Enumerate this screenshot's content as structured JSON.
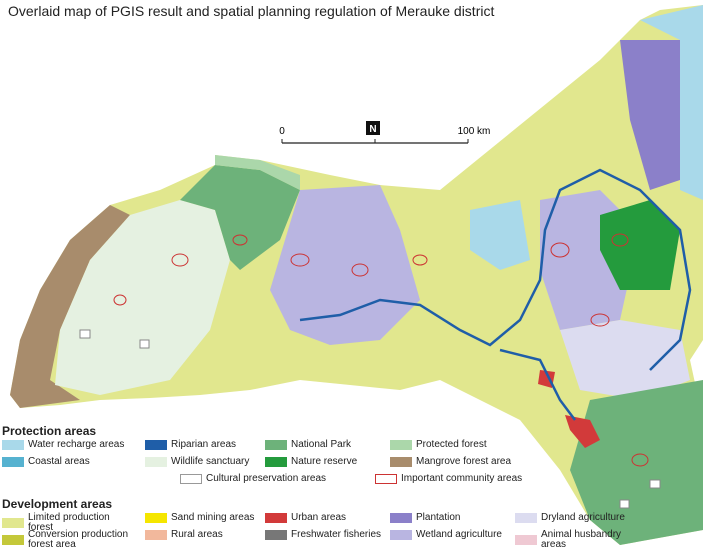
{
  "title": "Overlaid map of PGIS result and spatial planning regulation of Merauke district",
  "scale_bar": {
    "start": "0",
    "end": "100 km",
    "north": "N"
  },
  "legend": [
    {
      "heading": "Protection areas",
      "rows": [
        [
          {
            "label": "Water recharge areas",
            "color": "#a9d9ea"
          },
          {
            "label": "Riparian areas",
            "color": "#1f5ea8"
          },
          {
            "label": "National Park",
            "color": "#6db27a"
          },
          {
            "label": "Protected forest",
            "color": "#abd7aa"
          }
        ],
        [
          {
            "label": "Coastal areas",
            "color": "#56b2d0"
          },
          {
            "label": "Wildlife sanctuary",
            "color": "#e5f1e1"
          },
          {
            "label": "Nature reserve",
            "color": "#249b3d"
          },
          {
            "label": "Mangrove forest area",
            "color": "#a88c6c"
          }
        ],
        [
          {
            "label": "Cultural preservation areas",
            "color": "#ffffff",
            "outline": "#999999"
          },
          {
            "label": "Important community areas",
            "color": "#ffffff",
            "outline": "#cc3333"
          }
        ]
      ]
    },
    {
      "heading": "Development areas",
      "rows": [
        [
          {
            "label": "Limited production forest",
            "color": "#e1e78e"
          },
          {
            "label": "Sand mining areas",
            "color": "#f5e600"
          },
          {
            "label": "Urban areas",
            "color": "#d23a3a"
          },
          {
            "label": "Plantation",
            "color": "#8b80c9"
          },
          {
            "label": "Dryland agriculture",
            "color": "#dcdcf0"
          }
        ],
        [
          {
            "label": "Conversion production forest area",
            "color": "#c4c83a"
          },
          {
            "label": "Rural areas",
            "color": "#f2b89c"
          },
          {
            "label": "Freshwater fisheries",
            "color": "#777777"
          },
          {
            "label": "Wetland agriculture",
            "color": "#b9b5e1"
          },
          {
            "label": "Animal husbandry areas",
            "color": "#efc9d3"
          }
        ]
      ]
    }
  ]
}
